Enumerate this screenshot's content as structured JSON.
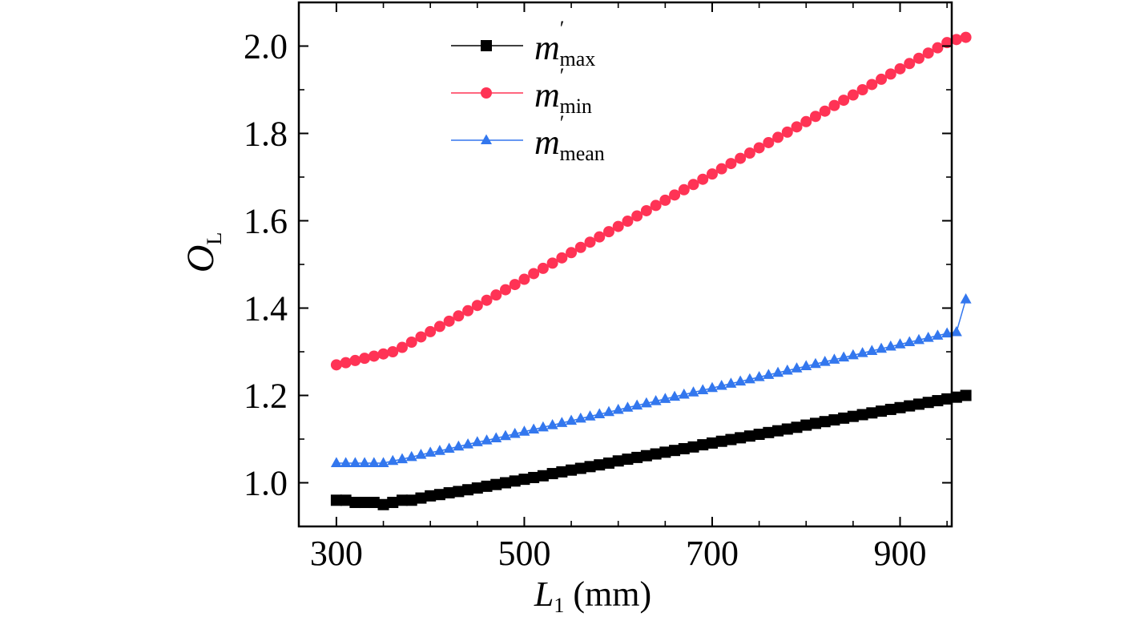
{
  "chart_data": {
    "type": "line",
    "xlabel": {
      "main": "L",
      "sub": "1",
      "rest": " (mm)"
    },
    "ylabel": {
      "main": "O",
      "sub": "L"
    },
    "xlim": [
      260,
      955
    ],
    "ylim": [
      0.9,
      2.1
    ],
    "xticks": [
      300,
      500,
      700,
      900
    ],
    "xtick_labels": [
      "300",
      "500",
      "700",
      "900"
    ],
    "yticks": [
      1.0,
      1.2,
      1.4,
      1.6,
      1.8,
      2.0
    ],
    "ytick_labels": [
      "1.0",
      "1.2",
      "1.4",
      "1.6",
      "1.8",
      "2.0"
    ],
    "grid": false,
    "legend_position": "top-left",
    "x_start": 300,
    "x_step": 10,
    "series": [
      {
        "name": "m′max",
        "legend": {
          "main": "m",
          "prime": "′",
          "sub": "max"
        },
        "color": "#000000",
        "marker": "square",
        "values": [
          0.96,
          0.96,
          0.955,
          0.955,
          0.955,
          0.95,
          0.955,
          0.96,
          0.96,
          0.965,
          0.97,
          0.973,
          0.977,
          0.98,
          0.984,
          0.988,
          0.992,
          0.996,
          1.0,
          1.004,
          1.008,
          1.012,
          1.016,
          1.021,
          1.025,
          1.029,
          1.033,
          1.037,
          1.041,
          1.045,
          1.05,
          1.054,
          1.058,
          1.062,
          1.066,
          1.07,
          1.074,
          1.078,
          1.082,
          1.087,
          1.091,
          1.095,
          1.099,
          1.103,
          1.107,
          1.111,
          1.115,
          1.119,
          1.123,
          1.127,
          1.132,
          1.136,
          1.14,
          1.144,
          1.148,
          1.152,
          1.156,
          1.16,
          1.164,
          1.168,
          1.172,
          1.176,
          1.18,
          1.184,
          1.188,
          1.192,
          1.196,
          1.2
        ]
      },
      {
        "name": "m′min",
        "legend": {
          "main": "m",
          "prime": "′",
          "sub": "min"
        },
        "color": "#ff3355",
        "marker": "circle",
        "values": [
          1.27,
          1.275,
          1.28,
          1.285,
          1.29,
          1.295,
          1.3,
          1.31,
          1.322,
          1.334,
          1.346,
          1.358,
          1.37,
          1.382,
          1.394,
          1.406,
          1.418,
          1.43,
          1.442,
          1.454,
          1.466,
          1.479,
          1.491,
          1.503,
          1.515,
          1.527,
          1.539,
          1.551,
          1.563,
          1.575,
          1.587,
          1.599,
          1.611,
          1.623,
          1.635,
          1.647,
          1.659,
          1.671,
          1.683,
          1.695,
          1.707,
          1.719,
          1.731,
          1.743,
          1.755,
          1.767,
          1.779,
          1.791,
          1.803,
          1.815,
          1.827,
          1.839,
          1.851,
          1.864,
          1.876,
          1.888,
          1.9,
          1.912,
          1.924,
          1.936,
          1.948,
          1.96,
          1.972,
          1.984,
          1.996,
          2.008,
          2.015,
          2.02
        ]
      },
      {
        "name": "m′mean",
        "legend": {
          "main": "m",
          "prime": "′",
          "sub": "mean"
        },
        "color": "#3377ee",
        "marker": "triangle",
        "values": [
          1.045,
          1.045,
          1.045,
          1.045,
          1.045,
          1.045,
          1.05,
          1.054,
          1.059,
          1.064,
          1.069,
          1.073,
          1.078,
          1.083,
          1.088,
          1.093,
          1.097,
          1.102,
          1.107,
          1.112,
          1.117,
          1.122,
          1.127,
          1.132,
          1.137,
          1.142,
          1.147,
          1.152,
          1.157,
          1.162,
          1.167,
          1.172,
          1.177,
          1.182,
          1.187,
          1.192,
          1.197,
          1.202,
          1.207,
          1.212,
          1.217,
          1.222,
          1.227,
          1.232,
          1.237,
          1.242,
          1.247,
          1.252,
          1.257,
          1.262,
          1.267,
          1.272,
          1.277,
          1.282,
          1.287,
          1.292,
          1.297,
          1.302,
          1.307,
          1.312,
          1.317,
          1.322,
          1.327,
          1.332,
          1.337,
          1.342,
          1.345,
          1.42
        ]
      }
    ]
  }
}
